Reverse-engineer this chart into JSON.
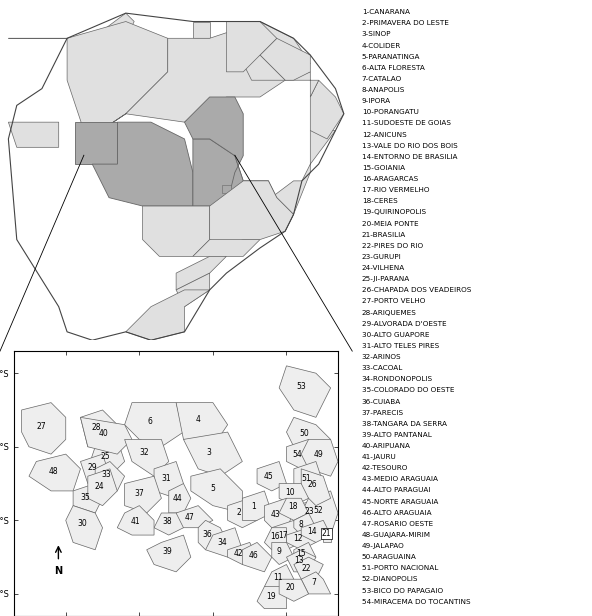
{
  "legend_entries": [
    "1-CANARANA",
    "2-PRIMAVERA DO LESTE",
    "3-SINOP",
    "4-COLIDER",
    "5-PARANATINGA",
    "6-ALTA FLORESTA",
    "7-CATALAO",
    "8-ANAPOLIS",
    "9-IPORA",
    "10-PORANGATU",
    "11-SUDOESTE DE GOIAS",
    "12-ANICUNS",
    "13-VALE DO RIO DOS BOIS",
    "14-ENTORNO DE BRASILIA",
    "15-GOIANIA",
    "16-ARAGARCAS",
    "17-RIO VERMELHO",
    "18-CERES",
    "19-QUIRINOPOLIS",
    "20-MEIA PONTE",
    "21-BRASILIA",
    "22-PIRES DO RIO",
    "23-GURUPI",
    "24-VILHENA",
    "25-JI-PARANA",
    "26-CHAPADA DOS VEADEIROS",
    "27-PORTO VELHO",
    "28-ARIQUEMES",
    "29-ALVORADA D'OESTE",
    "30-ALTO GUAPORE",
    "31-ALTO TELES PIRES",
    "32-ARINOS",
    "33-CACOAL",
    "34-RONDONOPOLIS",
    "35-COLORADO DO OESTE",
    "36-CUIABA",
    "37-PARECIS",
    "38-TANGARA DA SERRA",
    "39-ALTO PANTANAL",
    "40-ARIPUANA",
    "41-JAURU",
    "42-TESOURO",
    "43-MEDIO ARAGUAIA",
    "44-ALTO PARAGUAI",
    "45-NORTE ARAGUAIA",
    "46-ALTO ARAGUAIA",
    "47-ROSARIO OESTE",
    "48-GUAJARA-MIRIM",
    "49-JALAPAO",
    "50-ARAGUAINA",
    "51-PORTO NACIONAL",
    "52-DIANOPOLIS",
    "53-BICO DO PAPAGAIO",
    "54-MIRACEMA DO TOCANTINS"
  ],
  "bg_color": "#ffffff",
  "region_fill": "#eeeeee",
  "region_edge": "#666666",
  "highlighted_fill": "#aaaaaa",
  "light_fill": "#e0e0e0",
  "axis_label_fontsize": 6,
  "legend_fontsize": 5.2,
  "number_fontsize": 5.5,
  "tick_label_size": 6
}
